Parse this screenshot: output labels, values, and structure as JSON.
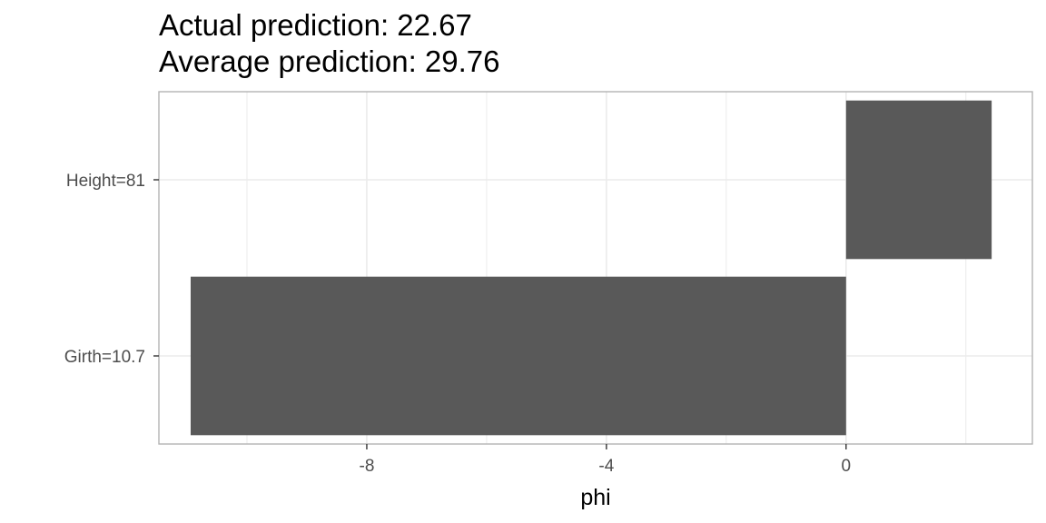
{
  "chart_data": {
    "type": "bar",
    "orientation": "horizontal",
    "title_lines": [
      "Actual prediction: 22.67",
      "Average prediction: 29.76"
    ],
    "xlabel": "phi",
    "ylabel": "",
    "categories": [
      "Height=81",
      "Girth=10.7"
    ],
    "values": [
      2.43,
      -10.94
    ],
    "xlim": [
      -11.47,
      3.11
    ],
    "x_ticks": [
      -8,
      -4,
      0
    ],
    "x_tick_labels": [
      "-8",
      "-4",
      "0"
    ],
    "grid": true,
    "bar_color": "#595959",
    "grid_color": "#ebebeb",
    "panel_border_color": "#b3b3b3",
    "legend": "none"
  }
}
